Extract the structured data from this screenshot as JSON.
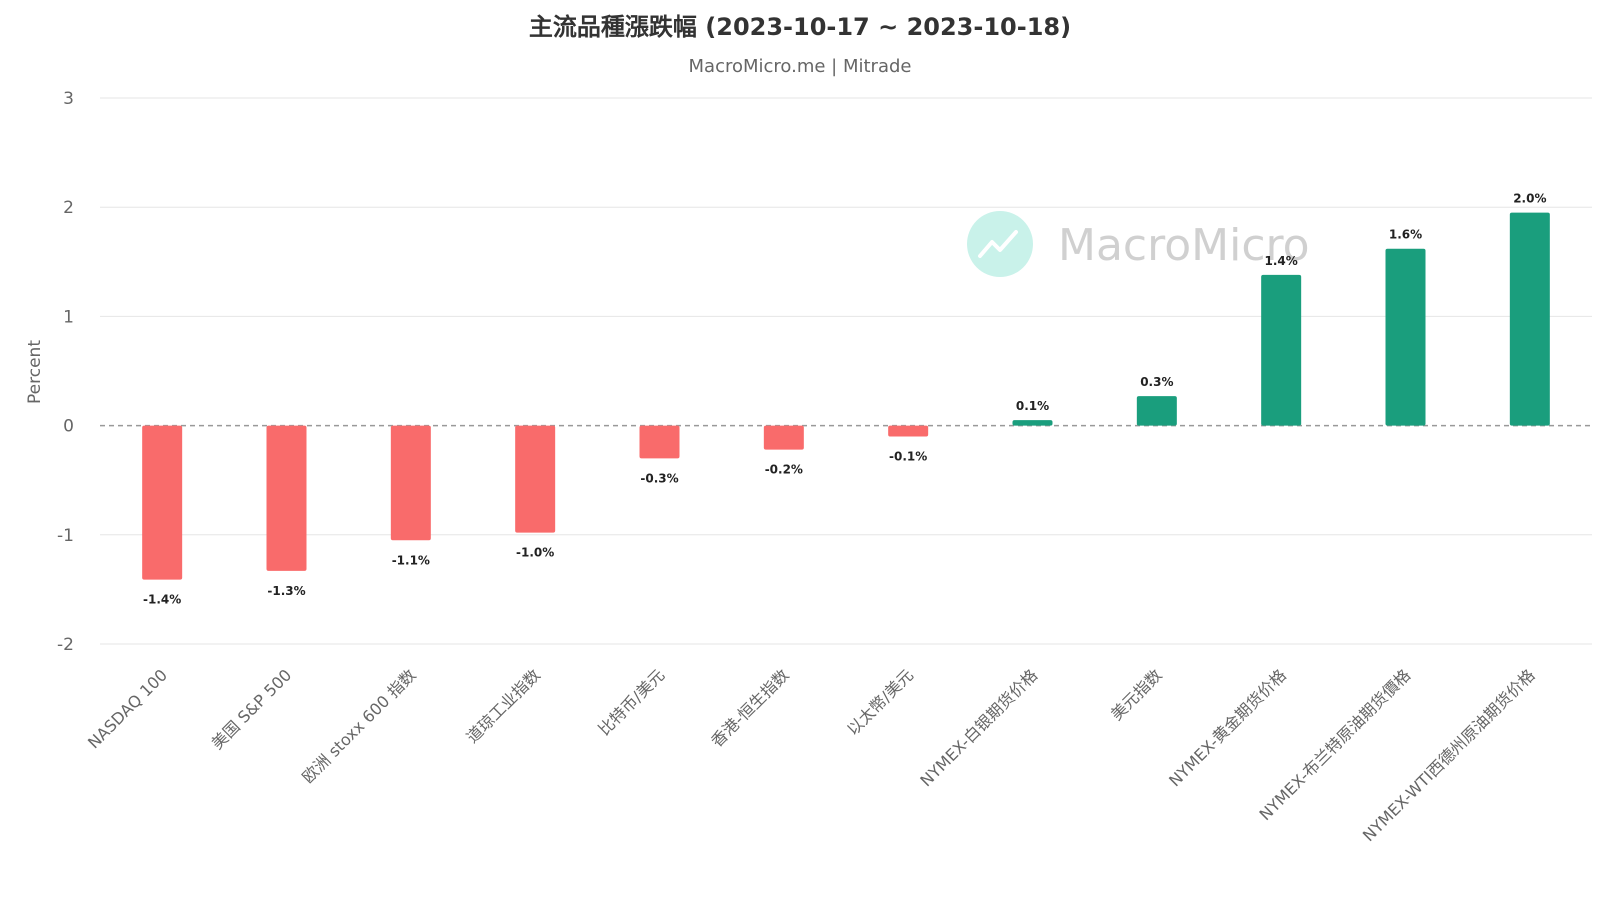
{
  "chart_data": {
    "type": "bar",
    "title": "主流品種漲跌幅 (2023-10-17 ~ 2023-10-18)",
    "subtitle": "MacroMicro.me | Mitrade",
    "ylabel": "Percent",
    "xlabel": "",
    "ylim": [
      -2,
      3
    ],
    "yticks": [
      3,
      2,
      1,
      0,
      -1,
      -2
    ],
    "grid": true,
    "watermark": "MacroMicro",
    "colors": {
      "positive": "#1a9e7d",
      "negative": "#f96b6b",
      "watermark_icon": "#c9f2ea"
    },
    "categories": [
      "NASDAQ 100",
      "美国 S&P 500",
      "欧洲 stoxx 600 指数",
      "道琼工业指数",
      "比特币/美元",
      "香港-恒生指数",
      "以太幣/美元",
      "NYMEX-白银期货价格",
      "美元指数",
      "NYMEX-黄金期货价格",
      "NYMEX-布兰特原油期货價格",
      "NYMEX-WTI西德州原油期货价格"
    ],
    "values": [
      -1.41,
      -1.33,
      -1.05,
      -0.98,
      -0.3,
      -0.22,
      -0.1,
      0.05,
      0.27,
      1.38,
      1.62,
      1.95
    ],
    "data_labels": [
      "-1.4%",
      "-1.3%",
      "-1.1%",
      "-1.0%",
      "-0.3%",
      "-0.2%",
      "-0.1%",
      "0.1%",
      "0.3%",
      "1.4%",
      "1.6%",
      "2.0%"
    ]
  }
}
